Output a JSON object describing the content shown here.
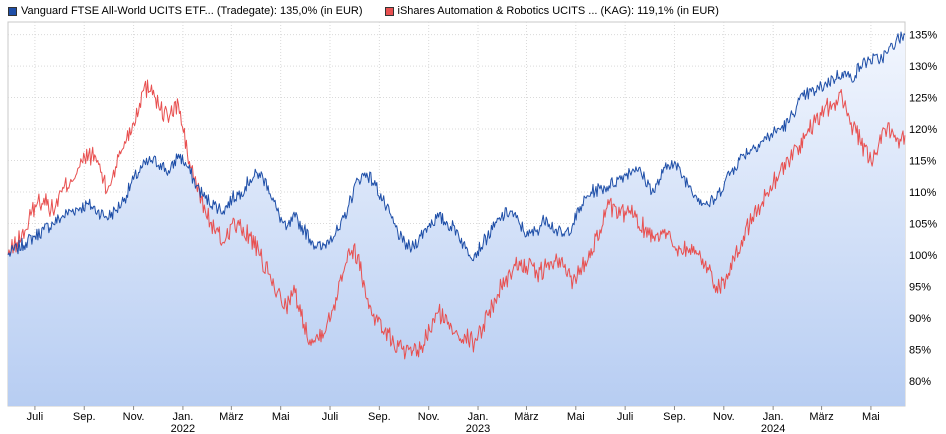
{
  "chart_data": {
    "type": "line",
    "title": "",
    "xlabel": "",
    "ylabel": "",
    "ylim": [
      76,
      137
    ],
    "y_ticks": [
      80,
      85,
      90,
      95,
      100,
      105,
      110,
      115,
      120,
      125,
      130,
      135
    ],
    "y_tick_labels": [
      "80%",
      "85%",
      "90%",
      "95%",
      "100%",
      "105%",
      "110%",
      "115%",
      "120%",
      "125%",
      "130%",
      "135%"
    ],
    "x_range": [
      0,
      100
    ],
    "x_ticks": [
      {
        "label": "Juli",
        "x": 3.0
      },
      {
        "label": "Sep.",
        "x": 8.5
      },
      {
        "label": "Nov.",
        "x": 14.0
      },
      {
        "label": "Jan.",
        "x": 19.5
      },
      {
        "label": "März",
        "x": 24.9
      },
      {
        "label": "Mai",
        "x": 30.4
      },
      {
        "label": "Juli",
        "x": 35.9
      },
      {
        "label": "Sep.",
        "x": 41.4
      },
      {
        "label": "Nov.",
        "x": 46.9
      },
      {
        "label": "Jan.",
        "x": 52.4
      },
      {
        "label": "März",
        "x": 57.8
      },
      {
        "label": "Mai",
        "x": 63.3
      },
      {
        "label": "Juli",
        "x": 68.8
      },
      {
        "label": "Sep.",
        "x": 74.3
      },
      {
        "label": "Nov.",
        "x": 79.8
      },
      {
        "label": "Jan.",
        "x": 85.3
      },
      {
        "label": "März",
        "x": 90.7
      },
      {
        "label": "Mai",
        "x": 96.2
      }
    ],
    "year_labels": [
      {
        "label": "2022",
        "x": 19.5
      },
      {
        "label": "2023",
        "x": 52.4
      },
      {
        "label": "2024",
        "x": 85.3
      }
    ],
    "legend": [
      "Vanguard FTSE All-World UCITS ETF... (Tradegate): 135,0% (in EUR)",
      "iShares Automation & Robotics UCITS ... (KAG): 119,1% (in EUR)"
    ],
    "series": [
      {
        "name": "Vanguard FTSE All-World UCITS ETF... (Tradegate): 135,0% (in EUR)",
        "color": "#1f4fa8",
        "fill_top": "#eaf1fd",
        "fill_bottom": "#bcd1f3",
        "points": [
          [
            0,
            100
          ],
          [
            1,
            101
          ],
          [
            2,
            102
          ],
          [
            3,
            103
          ],
          [
            4,
            104
          ],
          [
            5,
            105
          ],
          [
            6,
            106
          ],
          [
            7,
            107
          ],
          [
            8,
            107.5
          ],
          [
            9,
            108
          ],
          [
            10,
            107
          ],
          [
            11,
            106
          ],
          [
            12,
            107
          ],
          [
            13,
            109
          ],
          [
            14,
            112
          ],
          [
            15,
            114
          ],
          [
            16,
            115
          ],
          [
            17,
            114.5
          ],
          [
            18,
            113
          ],
          [
            19,
            116
          ],
          [
            20,
            114
          ],
          [
            21,
            111
          ],
          [
            22,
            109
          ],
          [
            23,
            108
          ],
          [
            24,
            107
          ],
          [
            25,
            109
          ],
          [
            26,
            110
          ],
          [
            27,
            112
          ],
          [
            28,
            113
          ],
          [
            29,
            111
          ],
          [
            30,
            107
          ],
          [
            31,
            104
          ],
          [
            32,
            106
          ],
          [
            33,
            104
          ],
          [
            34,
            102
          ],
          [
            35,
            101
          ],
          [
            36,
            103
          ],
          [
            37,
            104
          ],
          [
            38,
            108
          ],
          [
            39,
            112
          ],
          [
            40,
            113
          ],
          [
            41,
            111
          ],
          [
            42,
            108
          ],
          [
            43,
            105
          ],
          [
            44,
            102
          ],
          [
            45,
            101
          ],
          [
            46,
            103
          ],
          [
            47,
            105
          ],
          [
            48,
            106
          ],
          [
            49,
            105
          ],
          [
            50,
            104
          ],
          [
            51,
            101
          ],
          [
            52,
            100
          ],
          [
            53,
            102
          ],
          [
            54,
            104
          ],
          [
            55,
            106
          ],
          [
            56,
            107
          ],
          [
            57,
            105
          ],
          [
            58,
            103
          ],
          [
            59,
            104
          ],
          [
            60,
            106
          ],
          [
            61,
            104
          ],
          [
            62,
            103
          ],
          [
            63,
            105
          ],
          [
            64,
            108
          ],
          [
            65,
            110
          ],
          [
            66,
            110.5
          ],
          [
            67,
            111
          ],
          [
            68,
            112
          ],
          [
            69,
            113
          ],
          [
            70,
            114
          ],
          [
            71,
            112
          ],
          [
            72,
            110
          ],
          [
            73,
            113
          ],
          [
            74,
            115
          ],
          [
            75,
            113
          ],
          [
            76,
            111
          ],
          [
            77,
            109
          ],
          [
            78,
            108
          ],
          [
            79,
            109
          ],
          [
            80,
            112
          ],
          [
            81,
            114
          ],
          [
            82,
            116
          ],
          [
            83,
            117
          ],
          [
            84,
            118
          ],
          [
            85,
            119
          ],
          [
            86,
            120
          ],
          [
            87,
            121
          ],
          [
            88,
            124
          ],
          [
            89,
            125.5
          ],
          [
            90,
            126
          ],
          [
            91,
            127
          ],
          [
            92,
            128
          ],
          [
            93,
            129
          ],
          [
            94,
            128
          ],
          [
            95,
            130
          ],
          [
            96,
            131
          ],
          [
            97,
            131
          ],
          [
            98,
            132
          ],
          [
            99,
            134
          ],
          [
            100,
            135
          ]
        ]
      },
      {
        "name": "iShares Automation & Robotics UCITS ... (KAG): 119,1% (in EUR)",
        "color": "#e85050",
        "points": [
          [
            0,
            100
          ],
          [
            1,
            102
          ],
          [
            2,
            104
          ],
          [
            3,
            108
          ],
          [
            4,
            109
          ],
          [
            5,
            107
          ],
          [
            6,
            110
          ],
          [
            7,
            112
          ],
          [
            8,
            114
          ],
          [
            9,
            116
          ],
          [
            10,
            115
          ],
          [
            11,
            110
          ],
          [
            12,
            114
          ],
          [
            13,
            118
          ],
          [
            14,
            121
          ],
          [
            15,
            126
          ],
          [
            16,
            127
          ],
          [
            17,
            123
          ],
          [
            18,
            122
          ],
          [
            19,
            124
          ],
          [
            20,
            116
          ],
          [
            21,
            111
          ],
          [
            22,
            107
          ],
          [
            23,
            104
          ],
          [
            24,
            102
          ],
          [
            25,
            105
          ],
          [
            26,
            104
          ],
          [
            27,
            103
          ],
          [
            28,
            100
          ],
          [
            29,
            97
          ],
          [
            30,
            94
          ],
          [
            31,
            92
          ],
          [
            32,
            94
          ],
          [
            33,
            89
          ],
          [
            34,
            86
          ],
          [
            35,
            88
          ],
          [
            36,
            90
          ],
          [
            37,
            96
          ],
          [
            38,
            101
          ],
          [
            39,
            100
          ],
          [
            40,
            93
          ],
          [
            41,
            90
          ],
          [
            42,
            88
          ],
          [
            43,
            86
          ],
          [
            44,
            85
          ],
          [
            45,
            84
          ],
          [
            46,
            85
          ],
          [
            47,
            88
          ],
          [
            48,
            91
          ],
          [
            49,
            89
          ],
          [
            50,
            88
          ],
          [
            51,
            87
          ],
          [
            52,
            86
          ],
          [
            53,
            89
          ],
          [
            54,
            92
          ],
          [
            55,
            95
          ],
          [
            56,
            97
          ],
          [
            57,
            99
          ],
          [
            58,
            98
          ],
          [
            59,
            97
          ],
          [
            60,
            98
          ],
          [
            61,
            99
          ],
          [
            62,
            98
          ],
          [
            63,
            96
          ],
          [
            64,
            98
          ],
          [
            65,
            101
          ],
          [
            66,
            104
          ],
          [
            67,
            108
          ],
          [
            68,
            106
          ],
          [
            69,
            107
          ],
          [
            70,
            106
          ],
          [
            71,
            104
          ],
          [
            72,
            103
          ],
          [
            73,
            104
          ],
          [
            74,
            102
          ],
          [
            75,
            101
          ],
          [
            76,
            101
          ],
          [
            77,
            100
          ],
          [
            78,
            98
          ],
          [
            79,
            95
          ],
          [
            80,
            96
          ],
          [
            81,
            99
          ],
          [
            82,
            103
          ],
          [
            83,
            106
          ],
          [
            84,
            108
          ],
          [
            85,
            111
          ],
          [
            86,
            113
          ],
          [
            87,
            115
          ],
          [
            88,
            117
          ],
          [
            89,
            119
          ],
          [
            90,
            121
          ],
          [
            91,
            123
          ],
          [
            92,
            124
          ],
          [
            93,
            125
          ],
          [
            94,
            121
          ],
          [
            95,
            118
          ],
          [
            96,
            115
          ],
          [
            97,
            117
          ],
          [
            98,
            120
          ],
          [
            99,
            118
          ],
          [
            100,
            119
          ]
        ]
      }
    ]
  }
}
